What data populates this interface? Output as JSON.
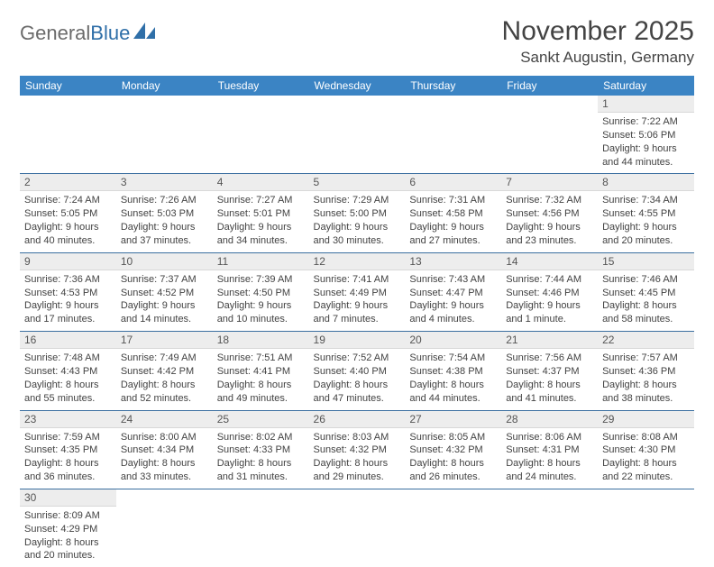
{
  "logo": {
    "text_a": "General",
    "text_b": "Blue"
  },
  "title": {
    "month": "November 2025",
    "location": "Sankt Augustin, Germany"
  },
  "colors": {
    "header_bg": "#3b84c4",
    "header_fg": "#ffffff",
    "daynum_bg": "#ededed",
    "row_border": "#3b6fa0",
    "logo_blue": "#2f6fa8"
  },
  "weekdays": [
    "Sunday",
    "Monday",
    "Tuesday",
    "Wednesday",
    "Thursday",
    "Friday",
    "Saturday"
  ],
  "weeks": [
    [
      null,
      null,
      null,
      null,
      null,
      null,
      {
        "n": "1",
        "sr": "7:22 AM",
        "ss": "5:06 PM",
        "dl": "9 hours and 44 minutes."
      }
    ],
    [
      {
        "n": "2",
        "sr": "7:24 AM",
        "ss": "5:05 PM",
        "dl": "9 hours and 40 minutes."
      },
      {
        "n": "3",
        "sr": "7:26 AM",
        "ss": "5:03 PM",
        "dl": "9 hours and 37 minutes."
      },
      {
        "n": "4",
        "sr": "7:27 AM",
        "ss": "5:01 PM",
        "dl": "9 hours and 34 minutes."
      },
      {
        "n": "5",
        "sr": "7:29 AM",
        "ss": "5:00 PM",
        "dl": "9 hours and 30 minutes."
      },
      {
        "n": "6",
        "sr": "7:31 AM",
        "ss": "4:58 PM",
        "dl": "9 hours and 27 minutes."
      },
      {
        "n": "7",
        "sr": "7:32 AM",
        "ss": "4:56 PM",
        "dl": "9 hours and 23 minutes."
      },
      {
        "n": "8",
        "sr": "7:34 AM",
        "ss": "4:55 PM",
        "dl": "9 hours and 20 minutes."
      }
    ],
    [
      {
        "n": "9",
        "sr": "7:36 AM",
        "ss": "4:53 PM",
        "dl": "9 hours and 17 minutes."
      },
      {
        "n": "10",
        "sr": "7:37 AM",
        "ss": "4:52 PM",
        "dl": "9 hours and 14 minutes."
      },
      {
        "n": "11",
        "sr": "7:39 AM",
        "ss": "4:50 PM",
        "dl": "9 hours and 10 minutes."
      },
      {
        "n": "12",
        "sr": "7:41 AM",
        "ss": "4:49 PM",
        "dl": "9 hours and 7 minutes."
      },
      {
        "n": "13",
        "sr": "7:43 AM",
        "ss": "4:47 PM",
        "dl": "9 hours and 4 minutes."
      },
      {
        "n": "14",
        "sr": "7:44 AM",
        "ss": "4:46 PM",
        "dl": "9 hours and 1 minute."
      },
      {
        "n": "15",
        "sr": "7:46 AM",
        "ss": "4:45 PM",
        "dl": "8 hours and 58 minutes."
      }
    ],
    [
      {
        "n": "16",
        "sr": "7:48 AM",
        "ss": "4:43 PM",
        "dl": "8 hours and 55 minutes."
      },
      {
        "n": "17",
        "sr": "7:49 AM",
        "ss": "4:42 PM",
        "dl": "8 hours and 52 minutes."
      },
      {
        "n": "18",
        "sr": "7:51 AM",
        "ss": "4:41 PM",
        "dl": "8 hours and 49 minutes."
      },
      {
        "n": "19",
        "sr": "7:52 AM",
        "ss": "4:40 PM",
        "dl": "8 hours and 47 minutes."
      },
      {
        "n": "20",
        "sr": "7:54 AM",
        "ss": "4:38 PM",
        "dl": "8 hours and 44 minutes."
      },
      {
        "n": "21",
        "sr": "7:56 AM",
        "ss": "4:37 PM",
        "dl": "8 hours and 41 minutes."
      },
      {
        "n": "22",
        "sr": "7:57 AM",
        "ss": "4:36 PM",
        "dl": "8 hours and 38 minutes."
      }
    ],
    [
      {
        "n": "23",
        "sr": "7:59 AM",
        "ss": "4:35 PM",
        "dl": "8 hours and 36 minutes."
      },
      {
        "n": "24",
        "sr": "8:00 AM",
        "ss": "4:34 PM",
        "dl": "8 hours and 33 minutes."
      },
      {
        "n": "25",
        "sr": "8:02 AM",
        "ss": "4:33 PM",
        "dl": "8 hours and 31 minutes."
      },
      {
        "n": "26",
        "sr": "8:03 AM",
        "ss": "4:32 PM",
        "dl": "8 hours and 29 minutes."
      },
      {
        "n": "27",
        "sr": "8:05 AM",
        "ss": "4:32 PM",
        "dl": "8 hours and 26 minutes."
      },
      {
        "n": "28",
        "sr": "8:06 AM",
        "ss": "4:31 PM",
        "dl": "8 hours and 24 minutes."
      },
      {
        "n": "29",
        "sr": "8:08 AM",
        "ss": "4:30 PM",
        "dl": "8 hours and 22 minutes."
      }
    ],
    [
      {
        "n": "30",
        "sr": "8:09 AM",
        "ss": "4:29 PM",
        "dl": "8 hours and 20 minutes."
      },
      null,
      null,
      null,
      null,
      null,
      null
    ]
  ],
  "labels": {
    "sunrise": "Sunrise: ",
    "sunset": "Sunset: ",
    "daylight": "Daylight: "
  }
}
